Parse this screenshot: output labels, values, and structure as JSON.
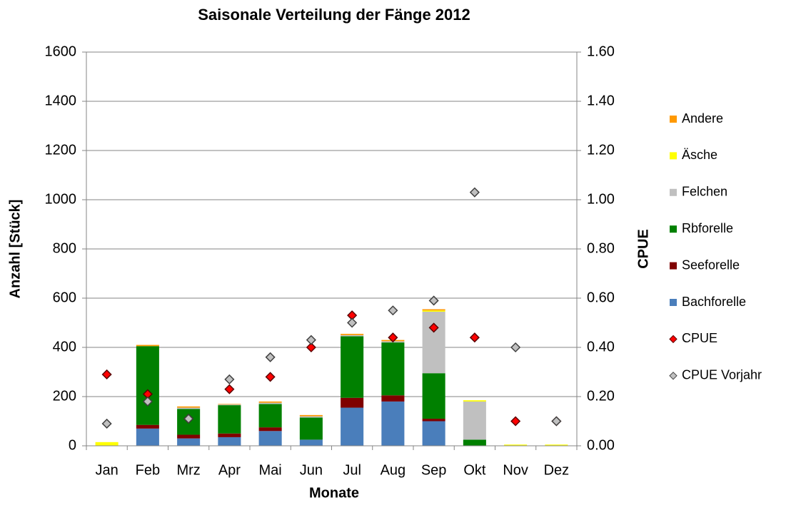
{
  "chart_data": {
    "type": "bar",
    "stacked": true,
    "title": "Saisonale Verteilung der Fänge 2012",
    "x_label": "Monate",
    "y_label": "Anzahl [Stück]",
    "y2_label": "CPUE",
    "categories": [
      "Jan",
      "Feb",
      "Mrz",
      "Apr",
      "Mai",
      "Jun",
      "Jul",
      "Aug",
      "Sep",
      "Okt",
      "Nov",
      "Dez"
    ],
    "series": [
      {
        "name": "Bachforelle",
        "color": "#4a7ebb",
        "values": [
          0,
          70,
          30,
          35,
          60,
          25,
          155,
          180,
          100,
          0,
          0,
          0
        ]
      },
      {
        "name": "Seeforelle",
        "color": "#7f0000",
        "values": [
          0,
          15,
          15,
          15,
          15,
          0,
          40,
          25,
          10,
          0,
          0,
          0
        ]
      },
      {
        "name": "Rbforelle",
        "color": "#008000",
        "values": [
          0,
          320,
          105,
          115,
          95,
          90,
          250,
          215,
          185,
          25,
          0,
          0
        ]
      },
      {
        "name": "Felchen",
        "color": "#c0c0c0",
        "values": [
          0,
          0,
          5,
          3,
          5,
          5,
          5,
          5,
          250,
          155,
          0,
          0
        ]
      },
      {
        "name": "Äsche",
        "color": "#ffff00",
        "values": [
          15,
          0,
          0,
          0,
          0,
          0,
          0,
          0,
          5,
          5,
          5,
          5
        ]
      },
      {
        "name": "Andere",
        "color": "#ff9900",
        "values": [
          0,
          5,
          5,
          2,
          5,
          5,
          5,
          5,
          5,
          0,
          0,
          0
        ]
      },
      {
        "name": "CPUE",
        "color": "#ff0000",
        "axis": "y2",
        "marker": "diamond",
        "values": [
          0.29,
          0.21,
          0.11,
          0.23,
          0.28,
          0.4,
          0.53,
          0.44,
          0.48,
          0.44,
          0.1,
          0.1
        ]
      },
      {
        "name": "CPUE Vorjahr",
        "color": "#c0c0c0",
        "axis": "y2",
        "marker": "diamond",
        "values": [
          0.09,
          0.18,
          0.11,
          0.27,
          0.36,
          0.43,
          0.5,
          0.55,
          0.59,
          1.03,
          0.4,
          0.1
        ]
      }
    ],
    "ylim": [
      0,
      1600
    ],
    "yticks": [
      0,
      200,
      400,
      600,
      800,
      1000,
      1200,
      1400,
      1600
    ],
    "y2lim": [
      0,
      1.6
    ],
    "y2ticks": [
      {
        "value": 0,
        "label": "0.00"
      },
      {
        "value": 0.2,
        "label": "0.20"
      },
      {
        "value": 0.4,
        "label": "0.40"
      },
      {
        "value": 0.6,
        "label": "0.60"
      },
      {
        "value": 0.8,
        "label": "0.80"
      },
      {
        "value": 1.0,
        "label": "1.00"
      },
      {
        "value": 1.2,
        "label": "1.20"
      },
      {
        "value": 1.4,
        "label": "1.40"
      },
      {
        "value": 1.6,
        "label": "1.60"
      }
    ],
    "grid": true,
    "legend": "right"
  }
}
